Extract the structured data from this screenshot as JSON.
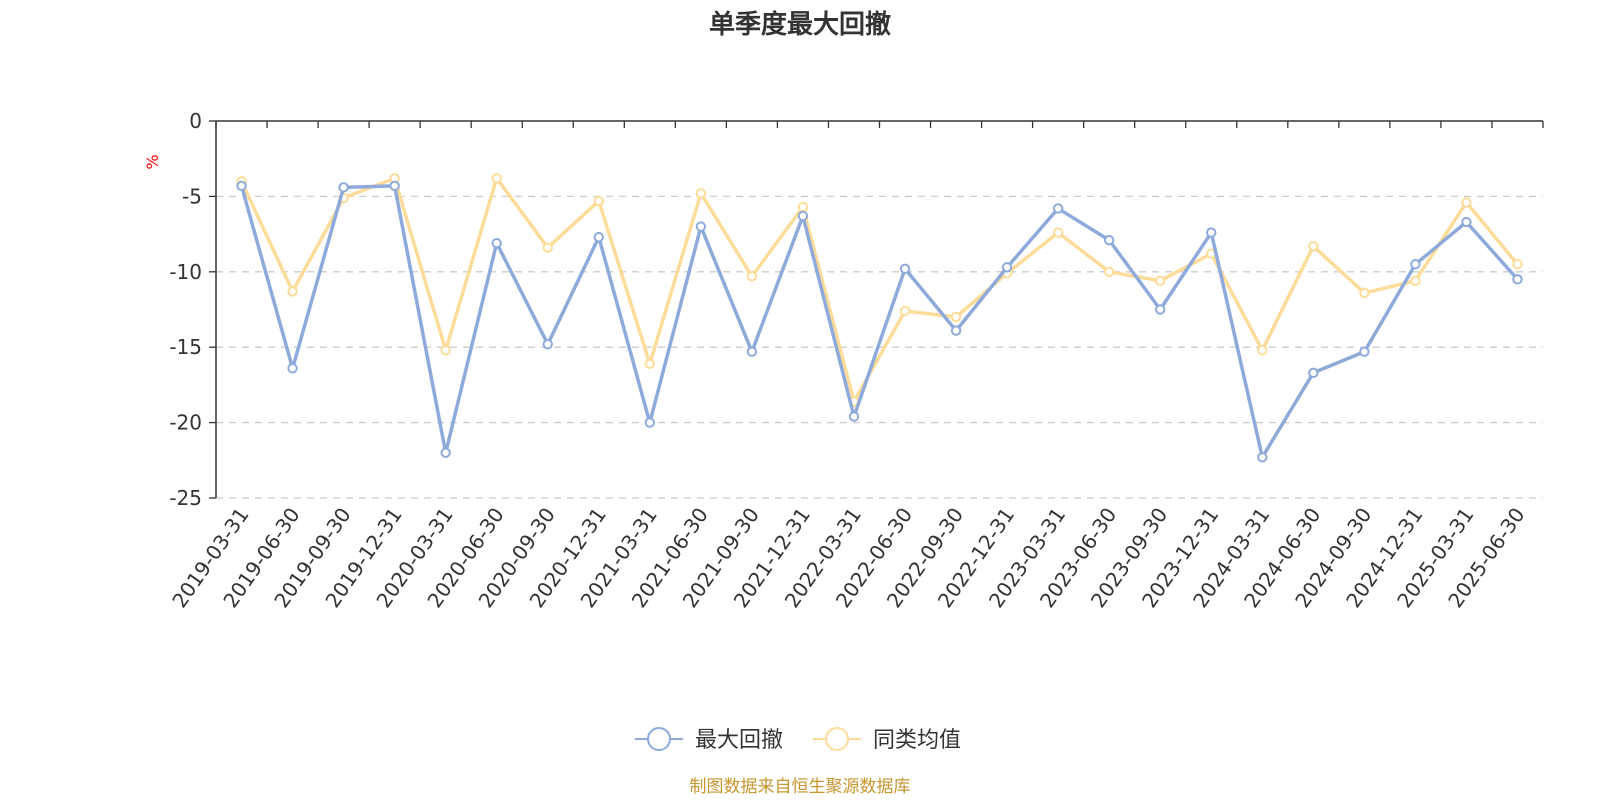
{
  "chart_data": {
    "type": "line",
    "title": "单季度最大回撤",
    "ylabel": "%",
    "ylim": [
      -25,
      0
    ],
    "yticks": [
      0,
      -5,
      -10,
      -15,
      -20,
      -25
    ],
    "grid": true,
    "legend_position": "bottom-center",
    "categories": [
      "2019-03-31",
      "2019-06-30",
      "2019-09-30",
      "2019-12-31",
      "2020-03-31",
      "2020-06-30",
      "2020-09-30",
      "2020-12-31",
      "2021-03-31",
      "2021-06-30",
      "2021-09-30",
      "2021-12-31",
      "2022-03-31",
      "2022-06-30",
      "2022-09-30",
      "2022-12-31",
      "2023-03-31",
      "2023-06-30",
      "2023-09-30",
      "2023-12-31",
      "2024-03-31",
      "2024-06-30",
      "2024-09-30",
      "2024-12-31",
      "2025-03-31",
      "2025-06-30"
    ],
    "series": [
      {
        "name": "最大回撤",
        "color": "#8eaadb",
        "values": [
          -4.3,
          -16.4,
          -4.4,
          -4.3,
          -22.0,
          -8.1,
          -14.8,
          -7.7,
          -20.0,
          -7.0,
          -15.3,
          -6.3,
          -19.6,
          -9.8,
          -13.9,
          -9.7,
          -5.8,
          -7.9,
          -12.5,
          -7.4,
          -22.3,
          -16.7,
          -15.3,
          -9.5,
          -6.7,
          -10.5
        ]
      },
      {
        "name": "同类均值",
        "color": "#fddc9a",
        "values": [
          -4.0,
          -11.3,
          -5.1,
          -3.8,
          -15.2,
          -3.8,
          -8.4,
          -5.3,
          -16.1,
          -4.8,
          -10.3,
          -5.7,
          -18.6,
          -12.6,
          -13.0,
          -10.1,
          -7.4,
          -10.0,
          -10.6,
          -8.8,
          -15.2,
          -8.3,
          -11.4,
          -10.6,
          -5.4,
          -9.5
        ]
      }
    ]
  },
  "source_note": "制图数据来自恒生聚源数据库"
}
